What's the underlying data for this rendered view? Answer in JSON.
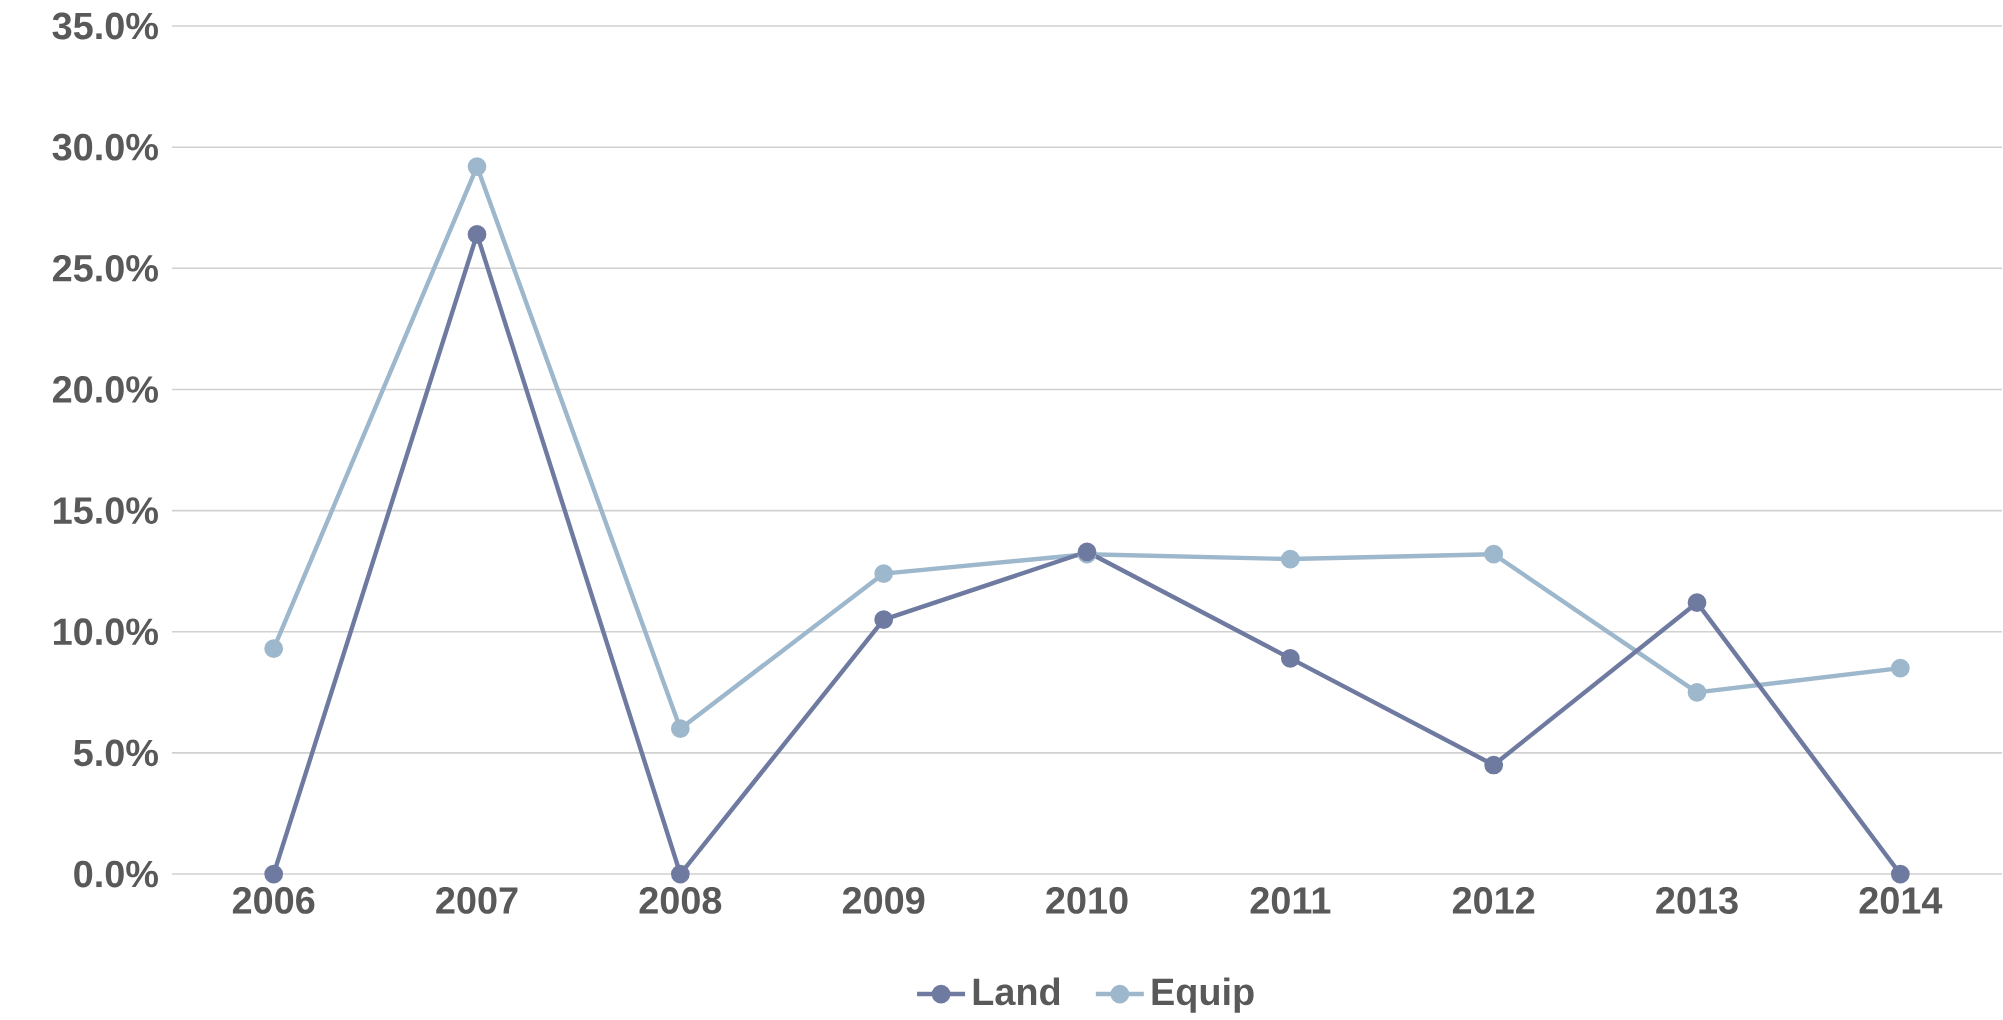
{
  "chart_data": {
    "type": "line",
    "categories": [
      "2006",
      "2007",
      "2008",
      "2009",
      "2010",
      "2011",
      "2012",
      "2013",
      "2014"
    ],
    "series": [
      {
        "name": "Land",
        "color": "#6f7aa0",
        "values": [
          0,
          26.4,
          0,
          10.5,
          13.3,
          8.9,
          4.5,
          11.2,
          0
        ]
      },
      {
        "name": "Equip",
        "color": "#9db7cc",
        "values": [
          9.3,
          29.2,
          6.0,
          12.4,
          13.2,
          13.0,
          13.2,
          7.5,
          8.5
        ]
      }
    ],
    "ylim": [
      0,
      35
    ],
    "yticks": [
      {
        "value": 0,
        "label": "0.0%"
      },
      {
        "value": 5,
        "label": "5.0%"
      },
      {
        "value": 10,
        "label": "10.0%"
      },
      {
        "value": 15,
        "label": "15.0%"
      },
      {
        "value": 20,
        "label": "20.0%"
      },
      {
        "value": 25,
        "label": "25.0%"
      },
      {
        "value": 30,
        "label": "30.0%"
      },
      {
        "value": 35,
        "label": "35.0%"
      }
    ],
    "grid": "y",
    "legend": "bottom",
    "marker": "circle",
    "line_style": "solid"
  }
}
